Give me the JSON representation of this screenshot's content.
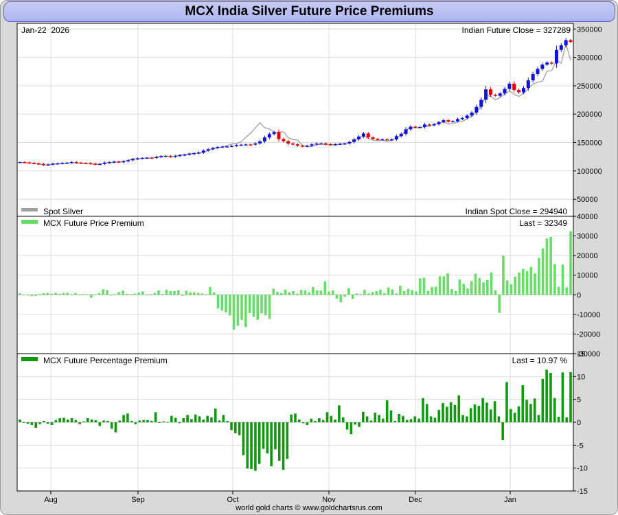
{
  "title": "MCX India Silver Future Price Premiums",
  "footer": "world gold charts © www.goldchartsrus.com",
  "colors": {
    "up": "#1212d8",
    "down": "#e00000",
    "spot": "#a0a0a0",
    "premium": "#66dd66",
    "percent": "#109910",
    "grid": "#dcdcdc"
  },
  "chart_data": {
    "type": "bar",
    "x_tick_labels": [
      "Aug",
      "Sep",
      "Oct",
      "Nov",
      "Dec",
      "Jan"
    ],
    "panels": [
      {
        "id": "price",
        "date_label": "Jan-22  2026",
        "top_right_label": "Indian Future Close = 327289",
        "legend": "Spot Silver",
        "bottom_right_label": "Indian Spot Close = 294940",
        "ylim": [
          20000,
          360000
        ],
        "y_ticks": [
          "350000",
          "300000",
          "250000",
          "200000",
          "150000",
          "100000",
          "50000"
        ],
        "y_tick_values": [
          350000,
          300000,
          250000,
          200000,
          150000,
          100000,
          50000
        ],
        "future_close": [
          115500,
          114800,
          113900,
          113000,
          112300,
          110500,
          111400,
          112800,
          113200,
          113900,
          114300,
          115500,
          114600,
          113800,
          113700,
          112800,
          111600,
          112300,
          114500,
          115300,
          116400,
          115400,
          116900,
          118800,
          120900,
          122000,
          122400,
          123200,
          122900,
          124600,
          125800,
          126400,
          124900,
          126500,
          127900,
          128800,
          130000,
          131200,
          132400,
          135800,
          138200,
          140400,
          142200,
          142600,
          143200,
          144100,
          145600,
          146200,
          146600,
          146300,
          148500,
          152100,
          158900,
          164800,
          168300,
          156100,
          152400,
          148200,
          146800,
          144400,
          143500,
          144500,
          146800,
          148300,
          148400,
          147100,
          146200,
          147100,
          147800,
          148400,
          151000,
          155700,
          160500,
          165900,
          159200,
          156400,
          155100,
          155700,
          154400,
          155500,
          161300,
          165400,
          173300,
          177900,
          176800,
          177400,
          181700,
          180500,
          182400,
          186000,
          189300,
          186700,
          187700,
          191300,
          193200,
          197500,
          202800,
          212900,
          225300,
          243700,
          234200,
          232300,
          236400,
          244500,
          253700,
          242700,
          238400,
          246000,
          259600,
          270500,
          279700,
          287300,
          290900,
          289300,
          313100,
          321300,
          330400,
          327289
        ],
        "spot_series": [
          114700,
          114800,
          114000,
          113700,
          112900,
          110100,
          110600,
          111800,
          112600,
          112900,
          113800,
          114600,
          113600,
          113500,
          112800,
          112600,
          111200,
          112100,
          113600,
          114800,
          115600,
          115800,
          116700,
          118500,
          121100,
          121600,
          122400,
          122800,
          122700,
          124000,
          125900,
          126300,
          124800,
          126200,
          127800,
          128700,
          131000,
          130500,
          132100,
          131800,
          136300,
          138800,
          140400,
          142400,
          144300,
          147400,
          148000,
          151500,
          159200,
          166300,
          175600,
          184900,
          176100,
          173900,
          168300,
          168500,
          168900,
          158400,
          155300,
          154300,
          145400,
          142200,
          142800,
          145800,
          147400,
          146200,
          146100,
          146000,
          147200,
          147800,
          148900,
          152200,
          158300,
          161700,
          157600,
          154300,
          153000,
          154300,
          152000,
          154800,
          157900,
          162200,
          171500,
          176500,
          176300,
          176000,
          178000,
          178600,
          180300,
          185100,
          186000,
          182900,
          183100,
          186600,
          187500,
          191800,
          196500,
          203600,
          214000,
          232700,
          232000,
          225300,
          229000,
          235900,
          240800,
          235100,
          231100,
          236600,
          245300,
          253000,
          256100,
          258000,
          275900,
          276600,
          295700,
          289700,
          324500,
          294940
        ]
      },
      {
        "id": "premium",
        "legend": "MCX Future Price Premium",
        "last_label": "Last = 32349",
        "ylim": [
          -30000,
          40000
        ],
        "y_ticks": [
          "40000",
          "30000",
          "20000",
          "10000",
          "0",
          "-10000",
          "-20000",
          "-30000"
        ],
        "y_tick_values": [
          40000,
          30000,
          20000,
          10000,
          0,
          -10000,
          -20000,
          -30000
        ],
        "values": [
          800,
          0,
          -200,
          -700,
          -600,
          400,
          800,
          1000,
          600,
          1000,
          500,
          900,
          1000,
          300,
          900,
          200,
          400,
          200,
          -1500,
          200,
          800,
          2800,
          2400,
          -400,
          200,
          1400,
          2100,
          400,
          300,
          600,
          1100,
          1700,
          100,
          300,
          900,
          2200,
          400,
          2500,
          1800,
          1900,
          2300,
          -500,
          2000,
          1200,
          1300,
          1000,
          700,
          200,
          4000,
          1200,
          -7000,
          -8000,
          -8900,
          -10500,
          -17700,
          -15800,
          -12800,
          -16500,
          -9300,
          -11300,
          -12800,
          -9500,
          -10500,
          -12300,
          3100,
          1500,
          900,
          2600,
          1300,
          1900,
          600,
          2500,
          2200,
          1200,
          4000,
          2200,
          2100,
          6800,
          1600,
          2200,
          -2000,
          -3900,
          -1000,
          3400,
          -2100,
          700,
          400,
          2500,
          700,
          1400,
          1800,
          2600,
          800,
          3700,
          2700,
          700,
          4600,
          1900,
          3000,
          2400,
          1700,
          8400,
          8700,
          2000,
          3900,
          4100,
          9400,
          9400,
          11000,
          2900,
          1900,
          7800,
          5600,
          3200,
          7000,
          10700,
          8600,
          6400,
          7500,
          11400,
          2200,
          -9200,
          19900,
          7300,
          5400,
          9200,
          11300,
          13200,
          12100,
          14200,
          10900,
          18800,
          23600,
          28700,
          29500,
          15700,
          4100,
          15400,
          3800,
          32349
        ]
      },
      {
        "id": "percent",
        "legend": "MCX Future Percentage Premium",
        "last_label": "Last = 10.97 %",
        "ylim": [
          -15,
          15
        ],
        "y_ticks": [
          "15",
          "10",
          "5",
          "0",
          "-5",
          "-10",
          "-15"
        ],
        "y_tick_values": [
          15,
          10,
          5,
          0,
          -5,
          -10,
          -15
        ],
        "values": [
          0.6,
          0.0,
          -0.3,
          -0.6,
          -1.2,
          -0.4,
          0.3,
          -0.3,
          -0.6,
          0.5,
          0.9,
          1.0,
          0.6,
          0.9,
          0.5,
          -0.4,
          0.2,
          0.9,
          0.6,
          0.5,
          -0.8,
          0.4,
          0.3,
          -1.4,
          -2.2,
          0.4,
          1.6,
          1.9,
          0.3,
          -0.4,
          0.4,
          0.5,
          0.5,
          0.3,
          2.2,
          -0.1,
          0.2,
          0.1,
          1.4,
          1.0,
          -0.2,
          0.9,
          1.6,
          0.7,
          1.7,
          1.3,
          0.6,
          1.4,
          1.1,
          3.0,
          0.4,
          1.6,
          0.3,
          -1.7,
          -2.4,
          -2.8,
          -7.2,
          -10.1,
          -10.2,
          -10.6,
          -9.1,
          -5.8,
          -6.8,
          -9.6,
          -5.9,
          -8.4,
          -10.4,
          -8.0,
          1.7,
          1.9,
          0.6,
          -0.2,
          -0.6,
          0.8,
          0.3,
          0.9,
          0.5,
          2.2,
          1.4,
          0.6,
          3.7,
          1.1,
          -1.6,
          -2.6,
          -0.5,
          -1.0,
          2.3,
          1.3,
          0.4,
          2.1,
          1.6,
          0.8,
          4.8,
          2.6,
          0.3,
          1.8,
          1.4,
          0.5,
          0.7,
          1.3,
          0.8,
          5.3,
          4.0,
          1.3,
          1.0,
          2.7,
          4.2,
          3.4,
          4.4,
          3.8,
          5.9,
          1.6,
          1.3,
          3.1,
          3.9,
          3.6,
          5.3,
          4.3,
          2.8,
          4.6,
          1.3,
          -3.9,
          8.8,
          2.9,
          2.1,
          3.5,
          8.1,
          4.9,
          4.0,
          5.2,
          1.6,
          9.5,
          11.5,
          10.8,
          5.3,
          1.2,
          10.9,
          1.1,
          10.97
        ]
      }
    ]
  }
}
